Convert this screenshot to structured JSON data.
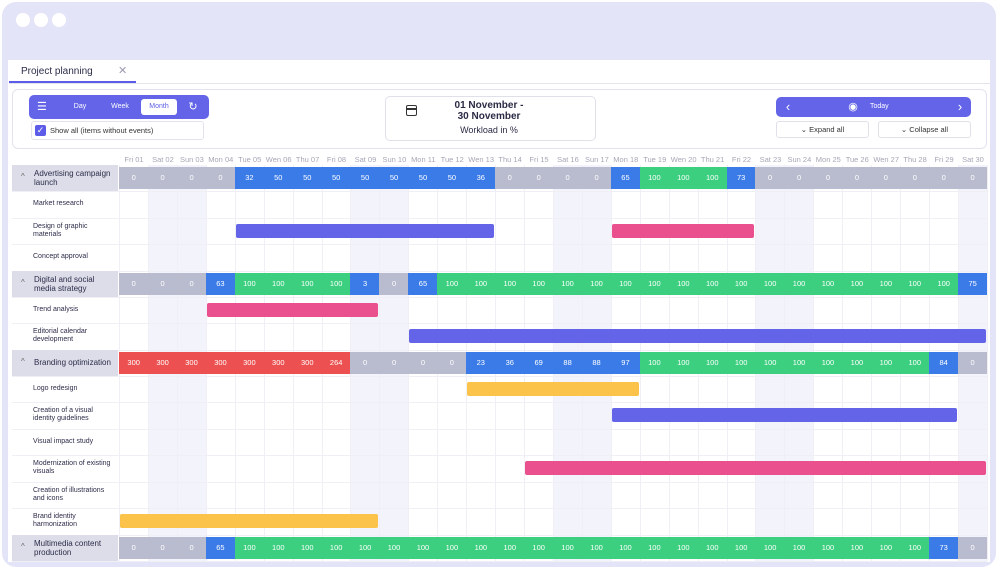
{
  "tab": {
    "title": "Project planning",
    "close": "✕"
  },
  "toolbar": {
    "menu_icon": "☰",
    "views": [
      "Day",
      "Week",
      "Month"
    ],
    "active_view": "Month",
    "refresh_icon": "↻",
    "show_all_label": "Show all (items without events)",
    "show_all_checked": true,
    "range_line1": "01 November -",
    "range_line2": "30 November",
    "workload_label": "Workload in %",
    "prev_icon": "‹",
    "next_icon": "›",
    "eye_icon": "◉",
    "today_label": "Today",
    "expand_all": "⌄ Expand all",
    "collapse_all": "⌄ Collapse all"
  },
  "days": [
    "Fri 01",
    "Sat 02",
    "Sun 03",
    "Mon 04",
    "Tue 05",
    "Wen 06",
    "Thu 07",
    "Fri 08",
    "Sat 09",
    "Sun 10",
    "Mon 11",
    "Tue 12",
    "Wen 13",
    "Thu 14",
    "Fri 15",
    "Sat 16",
    "Sun 17",
    "Mon 18",
    "Tue 19",
    "Wen 20",
    "Thu 21",
    "Fri 22",
    "Sat 23",
    "Sun 24",
    "Mon 25",
    "Tue 26",
    "Wen 27",
    "Thu 28",
    "Fri 29",
    "Sat 30"
  ],
  "weekend_index": [
    1,
    2,
    8,
    9,
    15,
    16,
    22,
    23,
    29
  ],
  "colors": {
    "zero": "#b9bccf",
    "partial": "#3a7be8",
    "full": "#3ccf7f",
    "over": "#ec5050",
    "purple": "#6364e8",
    "pink": "#ea4f8e",
    "yellow": "#fbc34a"
  },
  "groups": [
    {
      "label": "Advertising campaign launch",
      "workload": [
        0,
        0,
        0,
        0,
        32,
        50,
        50,
        50,
        50,
        50,
        50,
        50,
        36,
        0,
        0,
        0,
        0,
        65,
        100,
        100,
        100,
        73,
        0,
        0,
        0,
        0,
        0,
        0,
        0,
        0
      ],
      "tasks": [
        {
          "label": "Market research",
          "bars": []
        },
        {
          "label": "Design of graphic materials",
          "bars": [
            {
              "start": 4,
              "end": 12,
              "color": "purple"
            },
            {
              "start": 17,
              "end": 21,
              "color": "pink"
            }
          ]
        },
        {
          "label": "Concept approval",
          "bars": []
        }
      ]
    },
    {
      "label": "Digital and social media strategy",
      "workload": [
        0,
        0,
        0,
        63,
        100,
        100,
        100,
        100,
        3,
        0,
        65,
        100,
        100,
        100,
        100,
        100,
        100,
        100,
        100,
        100,
        100,
        100,
        100,
        100,
        100,
        100,
        100,
        100,
        100,
        75
      ],
      "tasks": [
        {
          "label": "Trend analysis",
          "bars": [
            {
              "start": 3,
              "end": 8,
              "color": "pink"
            }
          ]
        },
        {
          "label": "Editorial calendar development",
          "bars": [
            {
              "start": 10,
              "end": 29,
              "color": "purple"
            }
          ]
        }
      ]
    },
    {
      "label": "Branding optimization",
      "workload": [
        300,
        300,
        300,
        300,
        300,
        300,
        300,
        264,
        0,
        0,
        0,
        0,
        23,
        36,
        69,
        88,
        88,
        97,
        100,
        100,
        100,
        100,
        100,
        100,
        100,
        100,
        100,
        100,
        84,
        0
      ],
      "tasks": [
        {
          "label": "Logo redesign",
          "bars": [
            {
              "start": 12,
              "end": 17,
              "color": "yellow"
            }
          ]
        },
        {
          "label": "Creation of a visual identity guidelines",
          "bars": [
            {
              "start": 17,
              "end": 28,
              "color": "purple"
            }
          ]
        },
        {
          "label": "Visual impact study",
          "bars": []
        },
        {
          "label": "Modernization of existing visuals",
          "bars": [
            {
              "start": 14,
              "end": 29,
              "color": "pink"
            }
          ]
        },
        {
          "label": "Creation of illustrations and icons",
          "bars": []
        },
        {
          "label": "Brand identity harmonization",
          "bars": [
            {
              "start": 0,
              "end": 8,
              "color": "yellow"
            }
          ]
        }
      ]
    },
    {
      "label": "Multimedia content production",
      "workload": [
        0,
        0,
        0,
        65,
        100,
        100,
        100,
        100,
        100,
        100,
        100,
        100,
        100,
        100,
        100,
        100,
        100,
        100,
        100,
        100,
        100,
        100,
        100,
        100,
        100,
        100,
        100,
        100,
        73,
        0
      ],
      "tasks": []
    }
  ]
}
